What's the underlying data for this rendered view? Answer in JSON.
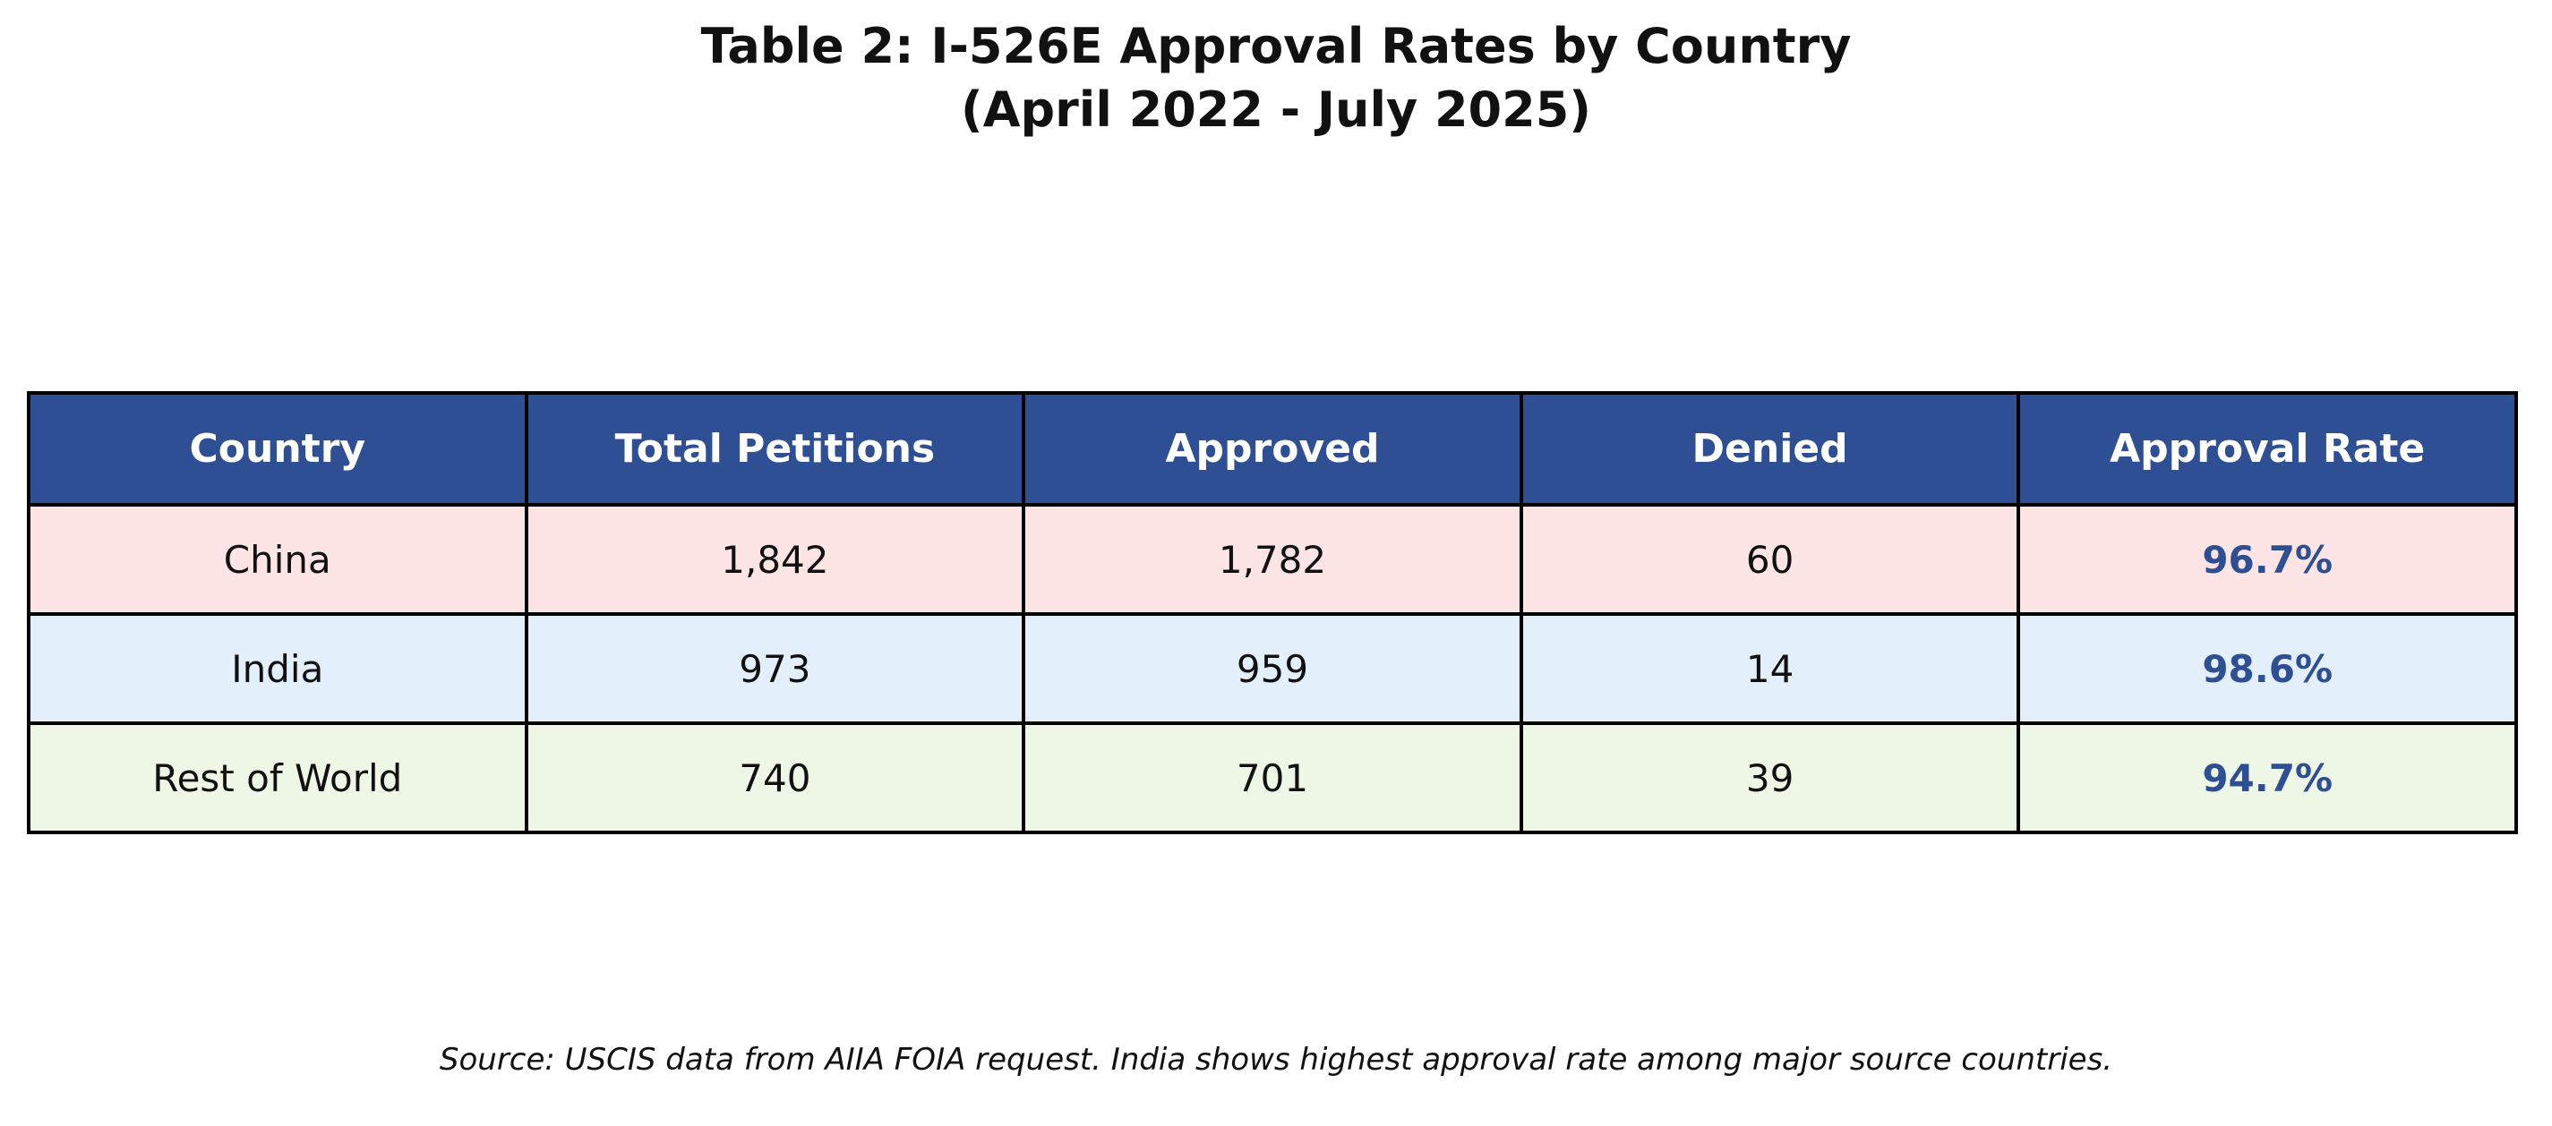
{
  "title": {
    "line1": "Table 2: I-526E Approval Rates by Country",
    "line2": "(April 2022 - July 2025)"
  },
  "table": {
    "headers": [
      "Country",
      "Total Petitions",
      "Approved",
      "Denied",
      "Approval Rate"
    ],
    "rows": [
      {
        "country": "China",
        "total": "1,842",
        "approved": "1,782",
        "denied": "60",
        "rate": "96.7%",
        "bg": "#fde5e5"
      },
      {
        "country": "India",
        "total": "973",
        "approved": "959",
        "denied": "14",
        "rate": "98.6%",
        "bg": "#e3f0fb"
      },
      {
        "country": "Rest of World",
        "total": "740",
        "approved": "701",
        "denied": "39",
        "rate": "94.7%",
        "bg": "#eef7e6"
      }
    ]
  },
  "caption": "Source: USCIS data from AIIA FOIA request. India shows highest approval rate among major source countries.",
  "colors": {
    "page_bg": "#ffffff",
    "header_bg": "#2e4f93",
    "header_text": "#ffffff",
    "rate_text": "#2e4f93",
    "border": "#000000"
  },
  "chart_data": {
    "type": "table",
    "title": "Table 2: I-526E Approval Rates by Country (April 2022 - July 2025)",
    "columns": [
      "Country",
      "Total Petitions",
      "Approved",
      "Denied",
      "Approval Rate"
    ],
    "rows": [
      [
        "China",
        1842,
        1782,
        60,
        "96.7%"
      ],
      [
        "India",
        973,
        959,
        14,
        "98.6%"
      ],
      [
        "Rest of World",
        740,
        701,
        39,
        "94.7%"
      ]
    ],
    "caption": "Source: USCIS data from AIIA FOIA request. India shows highest approval rate among major source countries.",
    "row_background_colors": [
      "#fde5e5",
      "#e3f0fb",
      "#eef7e6"
    ],
    "notes": "Approval Rate column rendered bold in dark blue; header row dark blue with white bold text; black grid borders"
  }
}
